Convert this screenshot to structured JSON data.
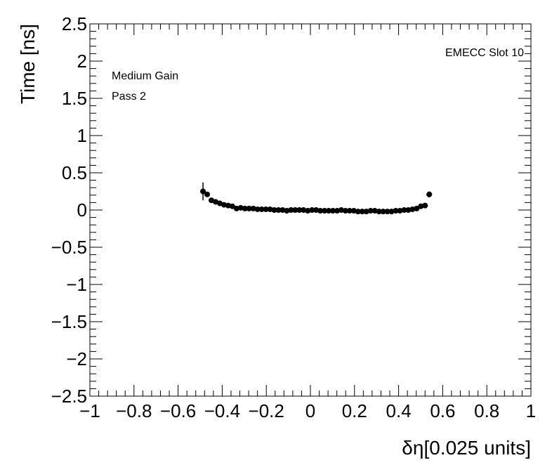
{
  "chart_data": {
    "type": "scatter",
    "title": "",
    "xlabel": "δη[0.025 units]",
    "ylabel": "Time [ns]",
    "xlim": [
      -1,
      1
    ],
    "ylim": [
      -2.5,
      2.5
    ],
    "x_ticks": [
      "−1",
      "−0.8",
      "−0.6",
      "−0.4",
      "−0.2",
      "0",
      "0.2",
      "0.4",
      "0.6",
      "0.8",
      "1"
    ],
    "y_ticks": [
      "2.5",
      "2",
      "1.5",
      "1",
      "0.5",
      "0",
      "−0.5",
      "−1",
      "−1.5",
      "−2",
      "−2.5"
    ],
    "annotations": {
      "top_right": "EMECC Slot 10",
      "line1": "Medium Gain",
      "line2": "Pass 2"
    },
    "grid": false,
    "points": [
      {
        "x": -0.487,
        "y": 0.25,
        "err": 0.12
      },
      {
        "x": -0.468,
        "y": 0.21,
        "err": 0.03
      },
      {
        "x": -0.449,
        "y": 0.13,
        "err": 0.02
      },
      {
        "x": -0.43,
        "y": 0.11,
        "err": 0.02
      },
      {
        "x": -0.411,
        "y": 0.09,
        "err": 0.02
      },
      {
        "x": -0.392,
        "y": 0.07,
        "err": 0.02
      },
      {
        "x": -0.373,
        "y": 0.06,
        "err": 0.02
      },
      {
        "x": -0.354,
        "y": 0.05,
        "err": 0.02
      },
      {
        "x": -0.335,
        "y": 0.02,
        "err": 0.02
      },
      {
        "x": -0.316,
        "y": 0.03,
        "err": 0.02
      },
      {
        "x": -0.297,
        "y": 0.02,
        "err": 0.02
      },
      {
        "x": -0.278,
        "y": 0.02,
        "err": 0.02
      },
      {
        "x": -0.259,
        "y": 0.02,
        "err": 0.02
      },
      {
        "x": -0.24,
        "y": 0.01,
        "err": 0.02
      },
      {
        "x": -0.221,
        "y": 0.01,
        "err": 0.02
      },
      {
        "x": -0.202,
        "y": 0.01,
        "err": 0.02
      },
      {
        "x": -0.183,
        "y": 0.01,
        "err": 0.02
      },
      {
        "x": -0.164,
        "y": 0.0,
        "err": 0.02
      },
      {
        "x": -0.145,
        "y": 0.0,
        "err": 0.02
      },
      {
        "x": -0.126,
        "y": 0.0,
        "err": 0.02
      },
      {
        "x": -0.107,
        "y": -0.01,
        "err": 0.02
      },
      {
        "x": -0.088,
        "y": 0.0,
        "err": 0.02
      },
      {
        "x": -0.069,
        "y": 0.0,
        "err": 0.02
      },
      {
        "x": -0.05,
        "y": 0.0,
        "err": 0.02
      },
      {
        "x": -0.031,
        "y": 0.0,
        "err": 0.02
      },
      {
        "x": -0.012,
        "y": -0.01,
        "err": 0.02
      },
      {
        "x": 0.007,
        "y": 0.0,
        "err": 0.02
      },
      {
        "x": 0.026,
        "y": 0.0,
        "err": 0.02
      },
      {
        "x": 0.045,
        "y": -0.01,
        "err": 0.02
      },
      {
        "x": 0.064,
        "y": -0.01,
        "err": 0.02
      },
      {
        "x": 0.083,
        "y": -0.01,
        "err": 0.02
      },
      {
        "x": 0.102,
        "y": -0.01,
        "err": 0.02
      },
      {
        "x": 0.121,
        "y": -0.01,
        "err": 0.02
      },
      {
        "x": 0.14,
        "y": 0.0,
        "err": 0.02
      },
      {
        "x": 0.159,
        "y": -0.01,
        "err": 0.02
      },
      {
        "x": 0.178,
        "y": -0.01,
        "err": 0.02
      },
      {
        "x": 0.197,
        "y": -0.01,
        "err": 0.02
      },
      {
        "x": 0.216,
        "y": -0.02,
        "err": 0.02
      },
      {
        "x": 0.235,
        "y": -0.02,
        "err": 0.02
      },
      {
        "x": 0.254,
        "y": -0.02,
        "err": 0.02
      },
      {
        "x": 0.273,
        "y": -0.01,
        "err": 0.02
      },
      {
        "x": 0.292,
        "y": -0.01,
        "err": 0.02
      },
      {
        "x": 0.311,
        "y": -0.02,
        "err": 0.02
      },
      {
        "x": 0.33,
        "y": -0.02,
        "err": 0.02
      },
      {
        "x": 0.349,
        "y": -0.02,
        "err": 0.02
      },
      {
        "x": 0.368,
        "y": -0.02,
        "err": 0.02
      },
      {
        "x": 0.387,
        "y": -0.01,
        "err": 0.02
      },
      {
        "x": 0.406,
        "y": -0.01,
        "err": 0.02
      },
      {
        "x": 0.425,
        "y": 0.0,
        "err": 0.02
      },
      {
        "x": 0.444,
        "y": 0.0,
        "err": 0.02
      },
      {
        "x": 0.463,
        "y": 0.01,
        "err": 0.02
      },
      {
        "x": 0.482,
        "y": 0.02,
        "err": 0.02
      },
      {
        "x": 0.501,
        "y": 0.05,
        "err": 0.02
      },
      {
        "x": 0.52,
        "y": 0.06,
        "err": 0.02
      },
      {
        "x": 0.539,
        "y": 0.21,
        "err": 0.04
      }
    ],
    "colors": {
      "marker": "#000000",
      "frame": "#000000",
      "background": "#ffffff"
    }
  }
}
